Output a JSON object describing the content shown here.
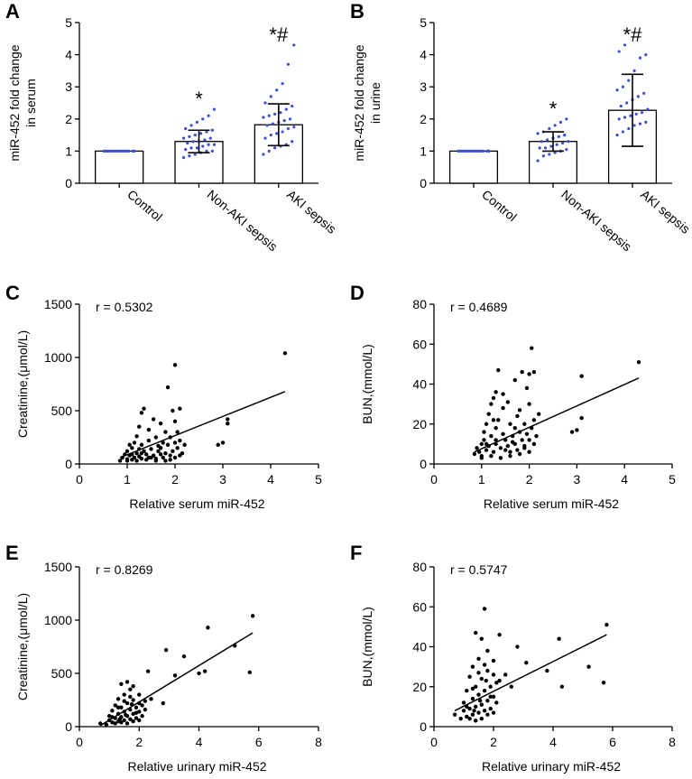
{
  "figure": {
    "panel_letters": [
      "A",
      "B",
      "C",
      "D",
      "E",
      "F"
    ]
  },
  "colors": {
    "axis": "#000000",
    "dot_bar": "#3b4fd6",
    "dot_scatter": "#000000",
    "bar_fill": "#ffffff"
  },
  "chart_data": [
    {
      "panel": "A",
      "type": "bar",
      "ylabel": "miR-452 fold change\nin  serum",
      "ylim": [
        0,
        5
      ],
      "yticks": [
        "0",
        "1",
        "2",
        "3",
        "4",
        "5"
      ],
      "categories": [
        "Control",
        "Non-AKI sepsis",
        "AKI sepsis"
      ],
      "values": [
        1.0,
        1.3,
        1.82
      ],
      "errors": [
        0.0,
        0.35,
        0.65
      ],
      "significance": [
        "",
        "*",
        "*#"
      ],
      "points": [
        [
          1.0,
          1.0,
          1.0,
          1.0,
          1.0,
          1.0,
          1.0,
          1.0,
          1.0,
          1.0,
          1.0,
          1.0,
          1.0,
          1.0,
          1.0,
          1.0
        ],
        [
          0.8,
          0.85,
          0.9,
          0.95,
          1.0,
          1.0,
          1.05,
          1.1,
          1.1,
          1.15,
          1.2,
          1.2,
          1.25,
          1.3,
          1.3,
          1.35,
          1.4,
          1.4,
          1.45,
          1.5,
          1.55,
          1.6,
          1.65,
          1.7,
          1.8,
          1.9,
          2.0,
          2.1,
          2.3
        ],
        [
          0.9,
          1.0,
          1.1,
          1.15,
          1.2,
          1.3,
          1.4,
          1.5,
          1.55,
          1.6,
          1.7,
          1.75,
          1.8,
          1.85,
          1.9,
          1.95,
          2.0,
          2.05,
          2.1,
          2.15,
          2.2,
          2.3,
          2.4,
          2.5,
          2.7,
          2.9,
          3.1,
          3.7,
          4.3
        ]
      ]
    },
    {
      "panel": "B",
      "type": "bar",
      "ylabel": "miR-452 fold change\nin urine",
      "ylim": [
        0,
        5
      ],
      "yticks": [
        "0",
        "1",
        "2",
        "3",
        "4",
        "5"
      ],
      "categories": [
        "Control",
        "Non-AKI sepsis",
        "AKI sepsis"
      ],
      "values": [
        1.0,
        1.3,
        2.27
      ],
      "errors": [
        0.0,
        0.3,
        1.12
      ],
      "significance": [
        "",
        "*",
        "*#"
      ],
      "points": [
        [
          1.0,
          1.0,
          1.0,
          1.0,
          1.0,
          1.0,
          1.0,
          1.0,
          1.0,
          1.0,
          1.0,
          1.0,
          1.0,
          1.0,
          1.0,
          1.0
        ],
        [
          0.7,
          0.85,
          0.9,
          0.95,
          1.0,
          1.05,
          1.1,
          1.1,
          1.15,
          1.2,
          1.25,
          1.3,
          1.3,
          1.35,
          1.4,
          1.45,
          1.5,
          1.55,
          1.6,
          1.7,
          1.8,
          1.9,
          2.0
        ],
        [
          1.5,
          1.6,
          1.7,
          1.8,
          1.85,
          1.9,
          2.0,
          2.05,
          2.1,
          2.15,
          2.2,
          2.3,
          2.4,
          2.5,
          2.6,
          2.7,
          2.8,
          2.9,
          3.0,
          3.2,
          3.5,
          3.9,
          4.0,
          4.1,
          4.3
        ]
      ]
    },
    {
      "panel": "C",
      "type": "scatter",
      "xlabel": "Relative serum miR-452",
      "ylabel": "Creatinine,(μmol/L)",
      "xlim": [
        0,
        5
      ],
      "ylim": [
        0,
        1500
      ],
      "xticks": [
        "0",
        "1",
        "2",
        "3",
        "4",
        "5"
      ],
      "yticks": [
        "0",
        "500",
        "1000",
        "1500"
      ],
      "r_label": "r = 0.5302",
      "fit": [
        [
          0.85,
          60
        ],
        [
          4.3,
          680
        ]
      ],
      "points": [
        [
          0.85,
          30
        ],
        [
          0.9,
          60
        ],
        [
          0.95,
          90
        ],
        [
          1.0,
          45
        ],
        [
          1.0,
          120
        ],
        [
          1.05,
          80
        ],
        [
          1.1,
          40
        ],
        [
          1.1,
          150
        ],
        [
          1.15,
          60
        ],
        [
          1.15,
          200
        ],
        [
          1.2,
          100
        ],
        [
          1.2,
          260
        ],
        [
          1.25,
          70
        ],
        [
          1.25,
          350
        ],
        [
          1.3,
          50
        ],
        [
          1.3,
          180
        ],
        [
          1.3,
          480
        ],
        [
          1.35,
          120
        ],
        [
          1.35,
          520
        ],
        [
          1.4,
          90
        ],
        [
          1.45,
          60
        ],
        [
          1.45,
          220
        ],
        [
          1.5,
          140
        ],
        [
          1.55,
          80
        ],
        [
          1.55,
          420
        ],
        [
          1.6,
          50
        ],
        [
          1.6,
          250
        ],
        [
          1.65,
          120
        ],
        [
          1.7,
          90
        ],
        [
          1.7,
          380
        ],
        [
          1.75,
          60
        ],
        [
          1.75,
          200
        ],
        [
          1.8,
          100
        ],
        [
          1.8,
          300
        ],
        [
          1.85,
          180
        ],
        [
          1.85,
          720
        ],
        [
          1.9,
          40
        ],
        [
          1.9,
          250
        ],
        [
          1.95,
          120
        ],
        [
          1.95,
          500
        ],
        [
          2.0,
          60
        ],
        [
          2.0,
          400
        ],
        [
          2.0,
          930
        ],
        [
          2.05,
          150
        ],
        [
          2.05,
          300
        ],
        [
          2.1,
          80
        ],
        [
          2.1,
          220
        ],
        [
          2.1,
          520
        ],
        [
          2.15,
          100
        ],
        [
          2.2,
          180
        ],
        [
          2.9,
          180
        ],
        [
          3.0,
          200
        ],
        [
          3.1,
          420
        ],
        [
          3.1,
          380
        ],
        [
          4.3,
          1040
        ],
        [
          1.0,
          30
        ],
        [
          1.2,
          30
        ],
        [
          1.4,
          40
        ],
        [
          1.6,
          30
        ],
        [
          1.8,
          30
        ],
        [
          1.1,
          90
        ],
        [
          1.3,
          100
        ],
        [
          1.5,
          60
        ],
        [
          1.7,
          150
        ],
        [
          1.9,
          80
        ],
        [
          2.0,
          200
        ],
        [
          1.05,
          180
        ],
        [
          1.25,
          140
        ],
        [
          1.45,
          320
        ],
        [
          1.65,
          170
        ]
      ]
    },
    {
      "panel": "D",
      "type": "scatter",
      "xlabel": "Relative serum miR-452",
      "ylabel": "BUN,(mmol/L)",
      "xlim": [
        0,
        5
      ],
      "ylim": [
        0,
        80
      ],
      "xticks": [
        "0",
        "1",
        "2",
        "3",
        "4",
        "5"
      ],
      "yticks": [
        "0",
        "20",
        "40",
        "60",
        "80"
      ],
      "r_label": "r = 0.4689",
      "fit": [
        [
          0.85,
          6
        ],
        [
          4.3,
          43
        ]
      ],
      "points": [
        [
          0.85,
          5
        ],
        [
          0.9,
          8
        ],
        [
          0.95,
          6
        ],
        [
          1.0,
          10
        ],
        [
          1.0,
          4
        ],
        [
          1.05,
          12
        ],
        [
          1.1,
          7
        ],
        [
          1.1,
          20
        ],
        [
          1.15,
          9
        ],
        [
          1.15,
          25
        ],
        [
          1.2,
          14
        ],
        [
          1.2,
          30
        ],
        [
          1.25,
          6
        ],
        [
          1.25,
          33
        ],
        [
          1.3,
          10
        ],
        [
          1.3,
          18
        ],
        [
          1.3,
          36
        ],
        [
          1.35,
          22
        ],
        [
          1.35,
          47
        ],
        [
          1.4,
          8
        ],
        [
          1.45,
          15
        ],
        [
          1.45,
          28
        ],
        [
          1.5,
          12
        ],
        [
          1.55,
          9
        ],
        [
          1.55,
          31
        ],
        [
          1.6,
          6
        ],
        [
          1.6,
          20
        ],
        [
          1.65,
          14
        ],
        [
          1.7,
          10
        ],
        [
          1.7,
          42
        ],
        [
          1.75,
          7
        ],
        [
          1.75,
          24
        ],
        [
          1.8,
          16
        ],
        [
          1.8,
          27
        ],
        [
          1.85,
          12
        ],
        [
          1.85,
          46
        ],
        [
          1.9,
          9
        ],
        [
          1.9,
          20
        ],
        [
          1.95,
          15
        ],
        [
          1.95,
          38
        ],
        [
          2.0,
          6
        ],
        [
          2.0,
          30
        ],
        [
          2.0,
          45
        ],
        [
          2.05,
          18
        ],
        [
          2.05,
          58
        ],
        [
          2.1,
          10
        ],
        [
          2.1,
          22
        ],
        [
          2.1,
          46
        ],
        [
          2.15,
          14
        ],
        [
          2.2,
          25
        ],
        [
          2.9,
          16
        ],
        [
          3.0,
          17
        ],
        [
          3.1,
          23
        ],
        [
          3.1,
          44
        ],
        [
          4.3,
          51
        ],
        [
          1.0,
          3
        ],
        [
          1.2,
          4
        ],
        [
          1.4,
          3
        ],
        [
          1.6,
          4
        ],
        [
          1.8,
          5
        ],
        [
          1.1,
          10
        ],
        [
          1.3,
          12
        ],
        [
          1.5,
          7
        ],
        [
          1.7,
          18
        ],
        [
          1.9,
          8
        ],
        [
          2.0,
          12
        ],
        [
          1.05,
          16
        ],
        [
          1.25,
          22
        ],
        [
          1.45,
          35
        ],
        [
          1.65,
          11
        ]
      ]
    },
    {
      "panel": "E",
      "type": "scatter",
      "xlabel": "Relative urinary miR-452",
      "ylabel": "Creatinine,(μmol/L)",
      "xlim": [
        0,
        8
      ],
      "ylim": [
        0,
        1500
      ],
      "xticks": [
        "0",
        "2",
        "4",
        "6",
        "8"
      ],
      "yticks": [
        "0",
        "500",
        "1000",
        "1500"
      ],
      "r_label": "r = 0.8269",
      "fit": [
        [
          0.7,
          10
        ],
        [
          5.8,
          880
        ]
      ],
      "points": [
        [
          0.7,
          30
        ],
        [
          0.9,
          20
        ],
        [
          1.0,
          60
        ],
        [
          1.0,
          100
        ],
        [
          1.1,
          40
        ],
        [
          1.1,
          150
        ],
        [
          1.2,
          80
        ],
        [
          1.2,
          200
        ],
        [
          1.3,
          50
        ],
        [
          1.3,
          120
        ],
        [
          1.3,
          260
        ],
        [
          1.4,
          90
        ],
        [
          1.4,
          180
        ],
        [
          1.4,
          400
        ],
        [
          1.5,
          60
        ],
        [
          1.5,
          140
        ],
        [
          1.5,
          300
        ],
        [
          1.6,
          100
        ],
        [
          1.6,
          220
        ],
        [
          1.6,
          420
        ],
        [
          1.7,
          70
        ],
        [
          1.7,
          160
        ],
        [
          1.7,
          350
        ],
        [
          1.8,
          120
        ],
        [
          1.8,
          250
        ],
        [
          1.8,
          380
        ],
        [
          1.9,
          80
        ],
        [
          1.9,
          180
        ],
        [
          2.0,
          140
        ],
        [
          2.0,
          220
        ],
        [
          2.0,
          300
        ],
        [
          2.1,
          100
        ],
        [
          2.1,
          200
        ],
        [
          2.2,
          160
        ],
        [
          2.3,
          520
        ],
        [
          2.4,
          260
        ],
        [
          2.8,
          220
        ],
        [
          2.9,
          720
        ],
        [
          3.2,
          480
        ],
        [
          3.5,
          660
        ],
        [
          4.0,
          500
        ],
        [
          4.2,
          520
        ],
        [
          4.3,
          930
        ],
        [
          5.2,
          760
        ],
        [
          5.7,
          510
        ],
        [
          5.8,
          1040
        ],
        [
          1.2,
          30
        ],
        [
          1.4,
          40
        ],
        [
          1.6,
          30
        ],
        [
          1.8,
          50
        ],
        [
          2.0,
          60
        ],
        [
          1.3,
          180
        ],
        [
          1.5,
          240
        ],
        [
          1.7,
          280
        ],
        [
          1.9,
          130
        ],
        [
          2.2,
          240
        ],
        [
          1.1,
          90
        ],
        [
          1.35,
          70
        ],
        [
          1.55,
          110
        ],
        [
          1.75,
          210
        ]
      ]
    },
    {
      "panel": "F",
      "type": "scatter",
      "xlabel": "Relative urinary miR-452",
      "ylabel": "BUN,(mmol/L)",
      "xlim": [
        0,
        8
      ],
      "ylim": [
        0,
        80
      ],
      "xticks": [
        "0",
        "2",
        "4",
        "6",
        "8"
      ],
      "yticks": [
        "0",
        "20",
        "40",
        "60",
        "80"
      ],
      "r_label": "r = 0.5747",
      "fit": [
        [
          0.7,
          8
        ],
        [
          5.8,
          46
        ]
      ],
      "points": [
        [
          0.7,
          6
        ],
        [
          0.9,
          4
        ],
        [
          1.0,
          8
        ],
        [
          1.0,
          12
        ],
        [
          1.1,
          5
        ],
        [
          1.1,
          18
        ],
        [
          1.2,
          9
        ],
        [
          1.2,
          25
        ],
        [
          1.3,
          6
        ],
        [
          1.3,
          14
        ],
        [
          1.3,
          30
        ],
        [
          1.4,
          10
        ],
        [
          1.4,
          20
        ],
        [
          1.4,
          47
        ],
        [
          1.5,
          7
        ],
        [
          1.5,
          16
        ],
        [
          1.5,
          34
        ],
        [
          1.6,
          11
        ],
        [
          1.6,
          24
        ],
        [
          1.6,
          44
        ],
        [
          1.7,
          8
        ],
        [
          1.7,
          18
        ],
        [
          1.7,
          59
        ],
        [
          1.8,
          13
        ],
        [
          1.8,
          28
        ],
        [
          1.8,
          38
        ],
        [
          1.9,
          9
        ],
        [
          1.9,
          20
        ],
        [
          2.0,
          15
        ],
        [
          2.0,
          26
        ],
        [
          2.0,
          33
        ],
        [
          2.1,
          12
        ],
        [
          2.1,
          22
        ],
        [
          2.2,
          46
        ],
        [
          2.4,
          26
        ],
        [
          2.6,
          20
        ],
        [
          2.8,
          40
        ],
        [
          3.1,
          32
        ],
        [
          3.8,
          28
        ],
        [
          4.2,
          44
        ],
        [
          4.3,
          20
        ],
        [
          5.2,
          30
        ],
        [
          5.7,
          22
        ],
        [
          5.8,
          51
        ],
        [
          1.2,
          4
        ],
        [
          1.4,
          3
        ],
        [
          1.6,
          4
        ],
        [
          1.8,
          6
        ],
        [
          2.0,
          7
        ],
        [
          1.3,
          19
        ],
        [
          1.5,
          27
        ],
        [
          1.7,
          31
        ],
        [
          1.9,
          15
        ],
        [
          2.2,
          23
        ],
        [
          1.1,
          10
        ],
        [
          1.35,
          8
        ],
        [
          1.55,
          13
        ],
        [
          1.75,
          23
        ]
      ]
    }
  ]
}
